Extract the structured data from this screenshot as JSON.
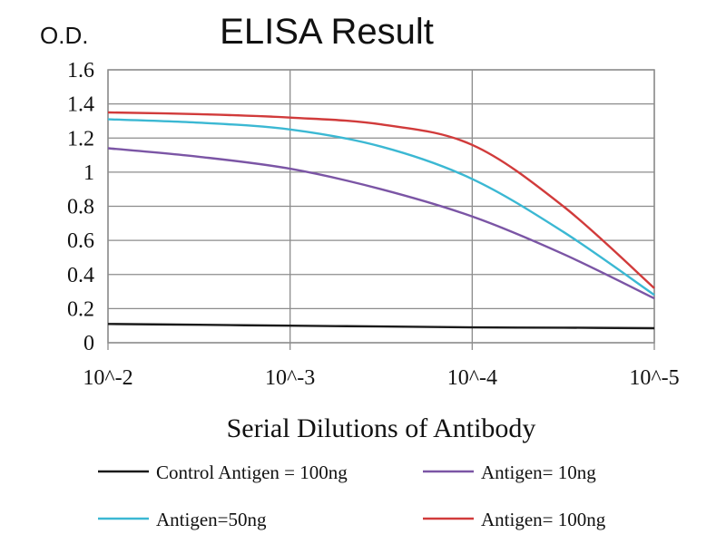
{
  "chart_data": {
    "type": "line",
    "title": "ELISA Result",
    "ylabel": "O.D.",
    "xlabel": "Serial Dilutions of Antibody",
    "x_ticks": [
      "10^-2",
      "10^-3",
      "10^-4",
      "10^-5"
    ],
    "x_scale": "log",
    "y_ticks": [
      "0",
      "0.2",
      "0.4",
      "0.6",
      "0.8",
      "1",
      "1.2",
      "1.4",
      "1.6"
    ],
    "ylim": [
      0,
      1.6
    ],
    "grid": true,
    "legend_position": "bottom",
    "series": [
      {
        "name": "Control Antigen = 100ng",
        "color": "#1a1a1a",
        "x": [
          0.01,
          0.003162,
          0.001,
          0.0003162,
          0.0001,
          3.162e-05,
          1e-05
        ],
        "y": [
          0.11,
          0.105,
          0.1,
          0.095,
          0.09,
          0.088,
          0.085
        ]
      },
      {
        "name": "Antigen= 10ng",
        "color": "#7b55a5",
        "x": [
          0.01,
          0.003162,
          0.001,
          0.0003162,
          0.0001,
          3.162e-05,
          1e-05
        ],
        "y": [
          1.14,
          1.09,
          1.02,
          0.9,
          0.74,
          0.52,
          0.26
        ]
      },
      {
        "name": "Antigen=50ng",
        "color": "#3bb8d3",
        "x": [
          0.01,
          0.003162,
          0.001,
          0.0003162,
          0.0001,
          3.162e-05,
          1e-05
        ],
        "y": [
          1.31,
          1.29,
          1.25,
          1.15,
          0.96,
          0.65,
          0.28
        ]
      },
      {
        "name": "Antigen= 100ng",
        "color": "#d13b3b",
        "x": [
          0.01,
          0.003162,
          0.001,
          0.0003162,
          0.0001,
          3.162e-05,
          1e-05
        ],
        "y": [
          1.35,
          1.34,
          1.32,
          1.28,
          1.16,
          0.8,
          0.32
        ]
      }
    ]
  }
}
